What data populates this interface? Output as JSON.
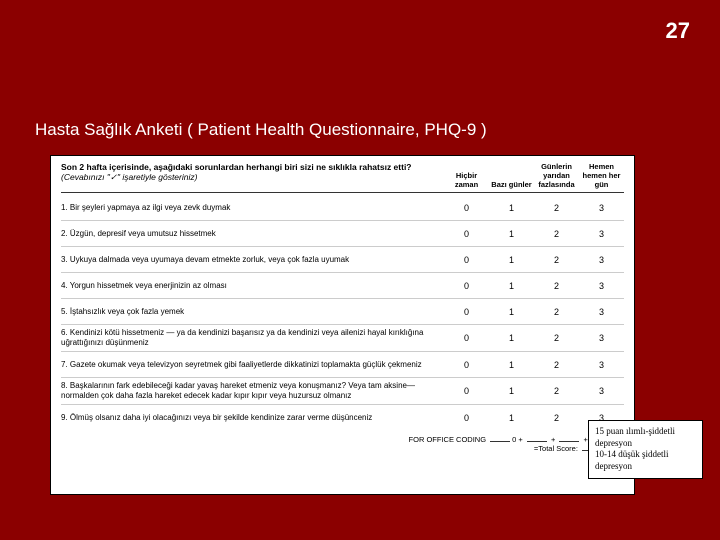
{
  "page_number": "27",
  "title": "Hasta Sağlık Anketi ( Patient Health  Questionnaire, PHQ-9 )",
  "form": {
    "header_question": "Son 2 hafta içerisinde, aşağıdaki sorunlardan herhangi biri sizi ne sıklıkla rahatsız etti?",
    "header_instruction": "(Cevabınızı \"✓\" işaretiyle gösteriniz)",
    "columns": [
      "Hiçbir zaman",
      "Bazı günler",
      "Günlerin yarıdan fazlasında",
      "Hemen hemen her gün"
    ],
    "scores": [
      "0",
      "1",
      "2",
      "3"
    ],
    "questions": [
      "1. Bir şeyleri yapmaya az ilgi veya zevk duymak",
      "2. Üzgün, depresif veya umutsuz hissetmek",
      "3. Uykuya dalmada veya uyumaya devam etmekte zorluk, veya çok fazla uyumak",
      "4. Yorgun hissetmek veya enerjinizin az olması",
      "5. İştahsızlık veya çok fazla yemek",
      "6. Kendinizi kötü hissetmeniz — ya da kendinizi başarısız ya da kendinizi veya ailenizi hayal kırıklığına uğrattığınızı düşünmeniz",
      "7. Gazete okumak veya televizyon seyretmek gibi faaliyetlerde dikkatinizi toplamakta güçlük çekmeniz",
      "8. Başkalarının fark edebileceği kadar yavaş hareket etmeniz veya konuşmanız? Veya tam aksine— normalden çok daha fazla hareket edecek kadar kıpır kıpır veya huzursuz olmanız",
      "9. Ölmüş olsanız daha iyi olacağınızı veya bir şekilde kendinize zarar verme düşünceniz"
    ],
    "coding_label": "FOR OFFICE CODING",
    "coding_zero": "0",
    "total_label": "=Total Score:"
  },
  "note": {
    "line1": "15 puan ılımlı-şiddetli depresyon",
    "line2": "10-14 düşük şiddetli depresyon"
  }
}
